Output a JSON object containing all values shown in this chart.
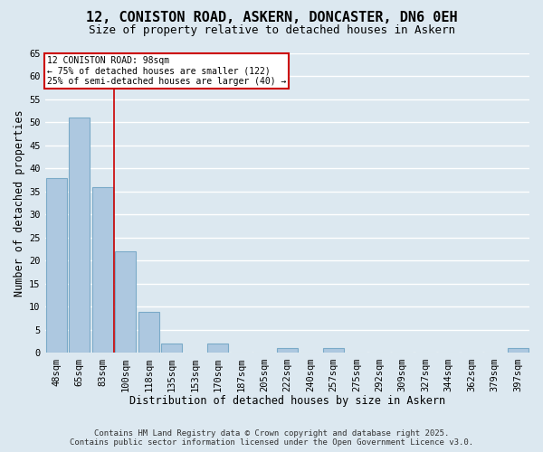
{
  "title": "12, CONISTON ROAD, ASKERN, DONCASTER, DN6 0EH",
  "subtitle": "Size of property relative to detached houses in Askern",
  "xlabel": "Distribution of detached houses by size in Askern",
  "ylabel": "Number of detached properties",
  "categories": [
    "48sqm",
    "65sqm",
    "83sqm",
    "100sqm",
    "118sqm",
    "135sqm",
    "153sqm",
    "170sqm",
    "187sqm",
    "205sqm",
    "222sqm",
    "240sqm",
    "257sqm",
    "275sqm",
    "292sqm",
    "309sqm",
    "327sqm",
    "344sqm",
    "362sqm",
    "379sqm",
    "397sqm"
  ],
  "values": [
    38,
    51,
    36,
    22,
    9,
    2,
    0,
    2,
    0,
    0,
    1,
    0,
    1,
    0,
    0,
    0,
    0,
    0,
    0,
    0,
    1
  ],
  "bar_color": "#adc8e0",
  "bar_edge_color": "#7aaac8",
  "vline_x_index": 3,
  "vline_color": "#cc0000",
  "vline_label": "12 CONISTON ROAD: 98sqm",
  "annotation_line1": "← 75% of detached houses are smaller (122)",
  "annotation_line2": "25% of semi-detached houses are larger (40) →",
  "annotation_box_color": "#ffffff",
  "annotation_box_edge_color": "#cc0000",
  "ylim": [
    0,
    65
  ],
  "yticks": [
    0,
    5,
    10,
    15,
    20,
    25,
    30,
    35,
    40,
    45,
    50,
    55,
    60,
    65
  ],
  "background_color": "#dce8f0",
  "plot_bg_color": "#dce8f0",
  "grid_color": "#ffffff",
  "footer_line1": "Contains HM Land Registry data © Crown copyright and database right 2025.",
  "footer_line2": "Contains public sector information licensed under the Open Government Licence v3.0.",
  "title_fontsize": 11,
  "subtitle_fontsize": 9,
  "tick_fontsize": 7.5,
  "axis_label_fontsize": 8.5,
  "footer_fontsize": 6.5
}
